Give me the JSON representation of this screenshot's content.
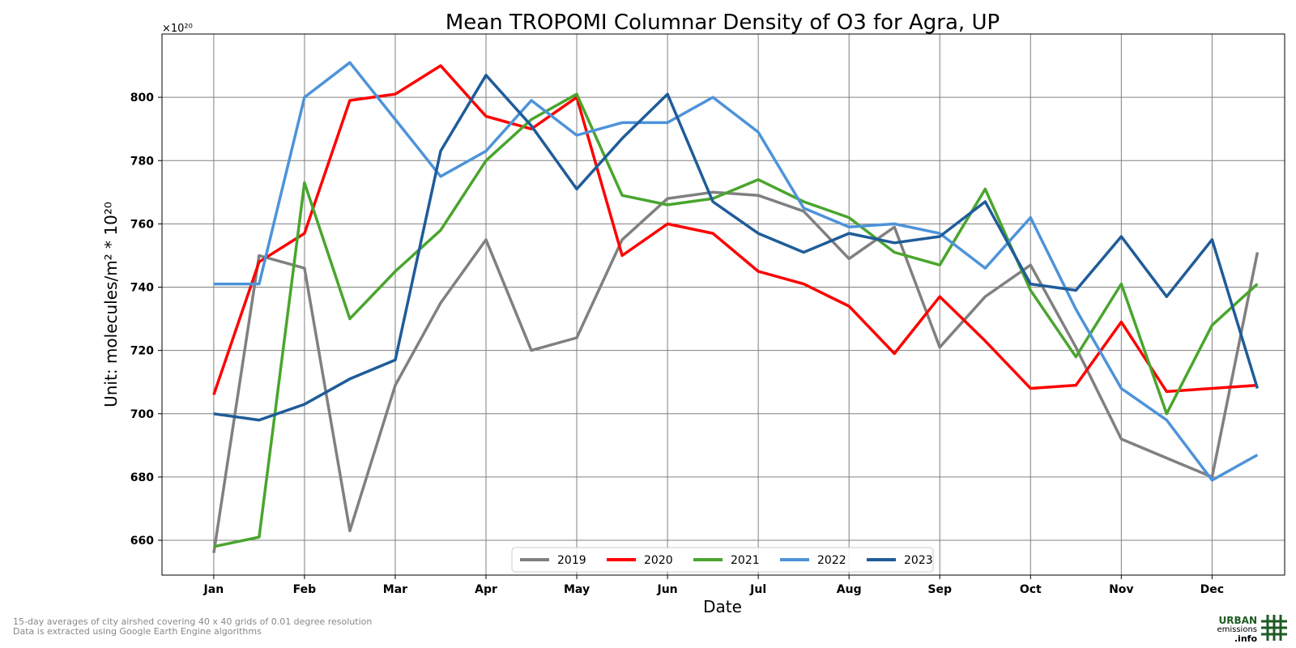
{
  "chart_data": {
    "type": "line",
    "title": "Mean TROPOMI Columnar Density of O3 for Agra, UP",
    "xlabel": "Date",
    "ylabel": "Unit: molecules/m² * 10²⁰",
    "y_offset_label": "×10²⁰",
    "ylim": [
      649,
      820
    ],
    "xlim": [
      0.43,
      12.8
    ],
    "yticks": [
      660,
      680,
      700,
      720,
      740,
      760,
      780,
      800
    ],
    "xtick_labels": [
      "Jan",
      "Feb",
      "Mar",
      "Apr",
      "May",
      "Jun",
      "Jul",
      "Aug",
      "Sep",
      "Oct",
      "Nov",
      "Dec"
    ],
    "grid": true,
    "legend_position": "bottom-center",
    "x": [
      1,
      1.5,
      2,
      2.5,
      3,
      3.5,
      4,
      4.5,
      5,
      5.5,
      6,
      6.5,
      7,
      7.5,
      8,
      8.5,
      9,
      9.5,
      10,
      10.5,
      11,
      11.5,
      12,
      12.5
    ],
    "series": [
      {
        "name": "2019",
        "color": "#808080",
        "values": [
          656,
          750,
          746,
          663,
          709,
          735,
          755,
          720,
          724,
          755,
          768,
          770,
          769,
          764,
          749,
          759,
          721,
          737,
          747,
          721,
          692,
          686,
          680,
          751
        ]
      },
      {
        "name": "2020",
        "color": "#ff0000",
        "values": [
          706,
          748,
          757,
          799,
          801,
          810,
          794,
          790,
          800,
          750,
          760,
          757,
          745,
          741,
          734,
          719,
          737,
          723,
          708,
          709,
          729,
          707,
          708,
          709
        ]
      },
      {
        "name": "2021",
        "color": "#4aa52e",
        "values": [
          658,
          661,
          773,
          730,
          745,
          758,
          780,
          793,
          801,
          769,
          766,
          768,
          774,
          767,
          762,
          751,
          747,
          771,
          739,
          718,
          741,
          700,
          728,
          741
        ]
      },
      {
        "name": "2022",
        "color": "#4d93d9",
        "values": [
          741,
          741,
          800,
          811,
          793,
          775,
          783,
          799,
          788,
          792,
          792,
          800,
          789,
          765,
          759,
          760,
          757,
          746,
          762,
          733,
          708,
          698,
          679,
          687
        ]
      },
      {
        "name": "2023",
        "color": "#1f5c99",
        "values": [
          700,
          698,
          703,
          711,
          717,
          783,
          807,
          791,
          771,
          787,
          801,
          767,
          757,
          751,
          757,
          754,
          756,
          767,
          741,
          739,
          756,
          737,
          755,
          708
        ]
      }
    ]
  },
  "footnote": {
    "line1": "15-day averages of city airshed covering 40 x 40 grids of 0.01 degree resolution",
    "line2": "Data is extracted using Google Earth Engine algorithms"
  },
  "logo": {
    "line1": "URBAN",
    "line2": "emissions",
    "line3": ".info",
    "color": "#1e5b24"
  }
}
